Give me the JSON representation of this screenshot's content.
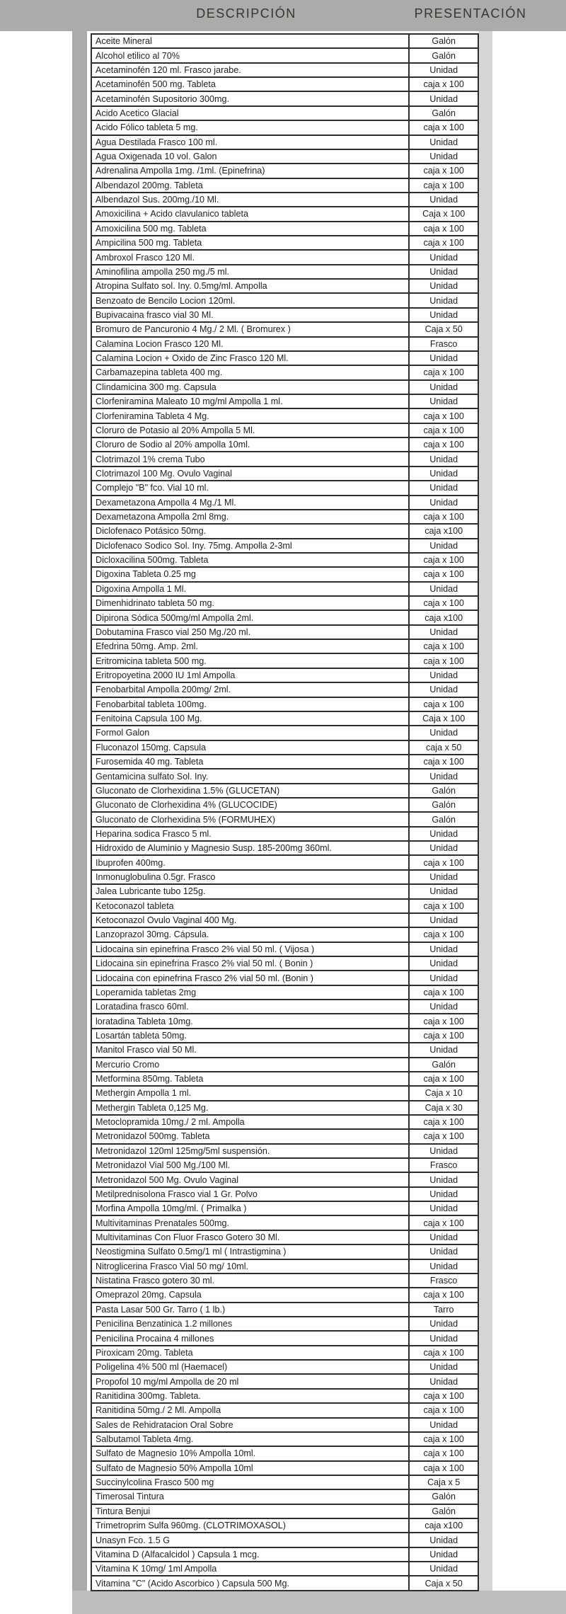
{
  "colors": {
    "page_bg": "#ffffff",
    "scan_band": "#ababab",
    "right_strip": "#d6d6d6",
    "bottom_strip": "#bdbdbd",
    "table_line": "#2e2e2e",
    "text": "#1f1f1f",
    "header_text": "#38352c"
  },
  "header": {
    "description": "DESCRIPCIÓN",
    "presentation": "PRESENTACIÓN"
  },
  "table": {
    "rows": [
      [
        "Aceite Mineral",
        "Galón"
      ],
      [
        "Alcohol etilico al 70%",
        "Galón"
      ],
      [
        "Acetaminofén 120 ml. Frasco jarabe.",
        "Unidad"
      ],
      [
        "Acetaminofén 500 mg. Tableta",
        "caja x 100"
      ],
      [
        "Acetaminofén Supositorio 300mg.",
        "Unidad"
      ],
      [
        "Acido Acetico Glacial",
        "Galón"
      ],
      [
        "Acido Fólico tableta 5 mg.",
        "caja x 100"
      ],
      [
        "Agua Destilada Frasco 100 ml.",
        "Unidad"
      ],
      [
        "Agua Oxigenada 10 vol. Galon",
        "Unidad"
      ],
      [
        "Adrenalina Ampolla 1mg. /1ml. (Epinefrina)",
        "caja x 100"
      ],
      [
        "Albendazol 200mg. Tableta",
        "caja x 100"
      ],
      [
        "Albendazol Sus. 200mg./10 Ml.",
        "Unidad"
      ],
      [
        "Amoxicilina + Acido clavulanico tableta",
        "Caja x 100"
      ],
      [
        "Amoxicilina 500 mg. Tableta",
        "caja x 100"
      ],
      [
        "Ampicilina 500 mg. Tableta",
        "caja x 100"
      ],
      [
        "Ambroxol Frasco 120 Ml.",
        "Unidad"
      ],
      [
        "Aminofilina ampolla 250 mg./5 ml.",
        "Unidad"
      ],
      [
        "Atropina Sulfato sol. Iny. 0.5mg/ml. Ampolla",
        "Unidad"
      ],
      [
        "Benzoato de Bencilo Locion 120ml.",
        "Unidad"
      ],
      [
        "Bupivacaina frasco vial 30 Ml.",
        "Unidad"
      ],
      [
        "Bromuro de Pancuronio 4 Mg./ 2 Ml.   ( Bromurex )",
        "Caja x 50"
      ],
      [
        "Calamina Locion Frasco 120 Ml.",
        "Frasco"
      ],
      [
        "Calamina Locion + Oxido de Zinc Frasco 120 Ml.",
        "Unidad"
      ],
      [
        "Carbamazepina tableta 400 mg.",
        "caja x 100"
      ],
      [
        "Clindamicina 300 mg. Capsula",
        "Unidad"
      ],
      [
        "Clorfeniramina Maleato 10 mg/ml Ampolla 1 ml.",
        "Unidad"
      ],
      [
        "Clorfeniramina Tableta 4 Mg.",
        "caja x 100"
      ],
      [
        "Cloruro de Potasio al 20%  Ampolla 5 Ml.",
        "caja x 100"
      ],
      [
        "Cloruro de Sodio al 20% ampolla 10ml.",
        "caja x 100"
      ],
      [
        "Clotrimazol 1% crema Tubo",
        "Unidad"
      ],
      [
        "Clotrimazol 100 Mg. Ovulo Vaginal",
        "Unidad"
      ],
      [
        "Complejo \"B\" fco. Vial 10 ml.",
        "Unidad"
      ],
      [
        "Dexametazona Ampolla 4 Mg./1 Ml.",
        "Unidad"
      ],
      [
        "Dexametazona Ampolla 2ml 8mg.",
        "caja x 100"
      ],
      [
        "Diclofenaco Potásico 50mg.",
        "caja x100"
      ],
      [
        "Diclofenaco Sodico Sol. Iny. 75mg. Ampolla 2-3ml",
        "Unidad"
      ],
      [
        "Dicloxacilina 500mg. Tableta",
        "caja x 100"
      ],
      [
        "Digoxina Tableta 0.25 mg",
        "caja x 100"
      ],
      [
        "Digoxina Ampolla 1 Ml.",
        "Unidad"
      ],
      [
        "Dimenhidrinato tableta 50 mg.",
        "caja x 100"
      ],
      [
        "Dipirona Sódica 500mg/ml Ampolla 2ml.",
        "caja x100"
      ],
      [
        "Dobutamina Frasco vial 250 Mg./20 ml.",
        "Unidad"
      ],
      [
        "Efedrina 50mg. Amp. 2ml.",
        "caja x 100"
      ],
      [
        "Eritromicina tableta 500 mg.",
        "caja x 100"
      ],
      [
        "Eritropoyetina  2000 IU 1ml Ampolla",
        "Unidad"
      ],
      [
        "Fenobarbital Ampolla 200mg/ 2ml.",
        "Unidad"
      ],
      [
        "Fenobarbital tableta 100mg.",
        "caja x 100"
      ],
      [
        "Fenitoina Capsula 100 Mg.",
        "Caja x 100"
      ],
      [
        "Formol Galon",
        "Unidad"
      ],
      [
        "Fluconazol 150mg.  Capsula",
        "caja x 50"
      ],
      [
        "Furosemida 40 mg. Tableta",
        "caja x 100"
      ],
      [
        "Gentamicina sulfato Sol. Iny.",
        "Unidad"
      ],
      [
        "Gluconato de Clorhexidina 1.5% (GLUCETAN)",
        "Galón"
      ],
      [
        "Gluconato de Clorhexidina 4% (GLUCOCIDE)",
        "Galón"
      ],
      [
        "Gluconato de Clorhexidina 5% (FORMUHEX)",
        "Galón"
      ],
      [
        "Heparina sodica Frasco 5 ml.",
        "Unidad"
      ],
      [
        "Hidroxido de Aluminio y Magnesio Susp. 185-200mg 360ml.",
        "Unidad"
      ],
      [
        "Ibuprofen 400mg.",
        "caja x 100"
      ],
      [
        "Inmonuglobulina 0.5gr. Frasco",
        "Unidad"
      ],
      [
        "Jalea Lubricante tubo 125g.",
        "Unidad"
      ],
      [
        "Ketoconazol tableta",
        "caja x 100"
      ],
      [
        "Ketoconazol Ovulo Vaginal 400 Mg.",
        "Unidad"
      ],
      [
        "Lanzoprazol 30mg. Cápsula.",
        "caja x 100"
      ],
      [
        "Lidocaina sin epinefrina Frasco 2% vial 50 ml.    ( Vijosa )",
        "Unidad"
      ],
      [
        "Lidocaina sin epinefrina Frasco 2% vial 50 ml.    ( Bonin )",
        "Unidad"
      ],
      [
        "Lidocaina con epinefrina Frasco 2% vial 50 ml.   (Bonin )",
        "Unidad"
      ],
      [
        "Loperamida tabletas 2mg",
        "caja x 100"
      ],
      [
        "Loratadina frasco 60ml.",
        "Unidad"
      ],
      [
        "loratadina Tableta 10mg.",
        "caja x 100"
      ],
      [
        "Losartán tableta 50mg.",
        "caja x 100"
      ],
      [
        "Manitol Frasco vial 50 Ml.",
        "Unidad"
      ],
      [
        "Mercurio Cromo",
        "Galón"
      ],
      [
        "Metformina 850mg. Tableta",
        "caja x 100"
      ],
      [
        "Methergin Ampolla 1 ml.",
        "Caja x 10"
      ],
      [
        "Methergin Tableta 0,125 Mg.",
        "Caja x 30"
      ],
      [
        "Metoclopramida 10mg./ 2 ml. Ampolla",
        "caja x 100"
      ],
      [
        "Metronidazol  500mg.  Tableta",
        "caja x 100"
      ],
      [
        "Metronidazol 120ml 125mg/5ml suspensión.",
        "Unidad"
      ],
      [
        "Metronidazol Vial 500 Mg./100 Ml.",
        "Frasco"
      ],
      [
        "Metronidazol 500 Mg. Ovulo Vaginal",
        "Unidad"
      ],
      [
        "Metilprednisolona Frasco vial 1 Gr. Polvo",
        "Unidad"
      ],
      [
        "Morfina Ampolla 10mg/ml.    ( Primalka )",
        "Unidad"
      ],
      [
        "Multivitaminas Prenatales 500mg.",
        "caja x 100"
      ],
      [
        "Multivitaminas Con Fluor Frasco Gotero 30 Ml.",
        "Unidad"
      ],
      [
        "Neostigmina Sulfato 0.5mg/1 ml  ( Intrastigmina )",
        "Unidad"
      ],
      [
        "Nitroglicerina Frasco Vial 50 mg/ 10ml.",
        "Unidad"
      ],
      [
        "Nistatina Frasco gotero 30 ml.",
        "Frasco"
      ],
      [
        "Omeprazol 20mg. Capsula",
        "caja x 100"
      ],
      [
        "Pasta Lasar 500 Gr. Tarro   ( 1 lb.)",
        "Tarro"
      ],
      [
        "Penicilina Benzatinica 1.2 millones",
        "Unidad"
      ],
      [
        "Penicilina Procaina 4 millones",
        "Unidad"
      ],
      [
        "Piroxicam 20mg. Tableta",
        "caja x 100"
      ],
      [
        "Poligelina 4% 500 ml   (Haemacel)",
        "Unidad"
      ],
      [
        "Propofol 10 mg/ml Ampolla de 20 ml",
        "Unidad"
      ],
      [
        "Ranitidina 300mg. Tableta.",
        "caja x 100"
      ],
      [
        "Ranitidina 50mg./ 2 Ml. Ampolla",
        "caja x 100"
      ],
      [
        "Sales de Rehidratacion Oral Sobre",
        "Unidad"
      ],
      [
        "Salbutamol Tableta 4mg.",
        "caja x 100"
      ],
      [
        "Sulfato de Magnesio 10% Ampolla 10ml.",
        "caja x 100"
      ],
      [
        "Sulfato de Magnesio 50% Ampolla 10ml",
        "caja x 100"
      ],
      [
        "Succinylcolina Frasco 500 mg",
        "Caja x 5"
      ],
      [
        "Timerosal Tintura",
        "Galón"
      ],
      [
        "Tintura Benjui",
        "Galón"
      ],
      [
        "Trimetroprim Sulfa 960mg. (CLOTRIMOXASOL)",
        "caja x100"
      ],
      [
        "Unasyn Fco. 1.5 G",
        "Unidad"
      ],
      [
        "Vitamina D (Alfacalcidol ) Capsula 1 mcg.",
        "Unidad"
      ],
      [
        "Vitamina K 10mg/ 1ml Ampolla",
        "Unidad"
      ],
      [
        "Vitamina \"C\" (Acido Ascorbico ) Capsula 500 Mg.",
        "Caja x 50"
      ]
    ]
  }
}
